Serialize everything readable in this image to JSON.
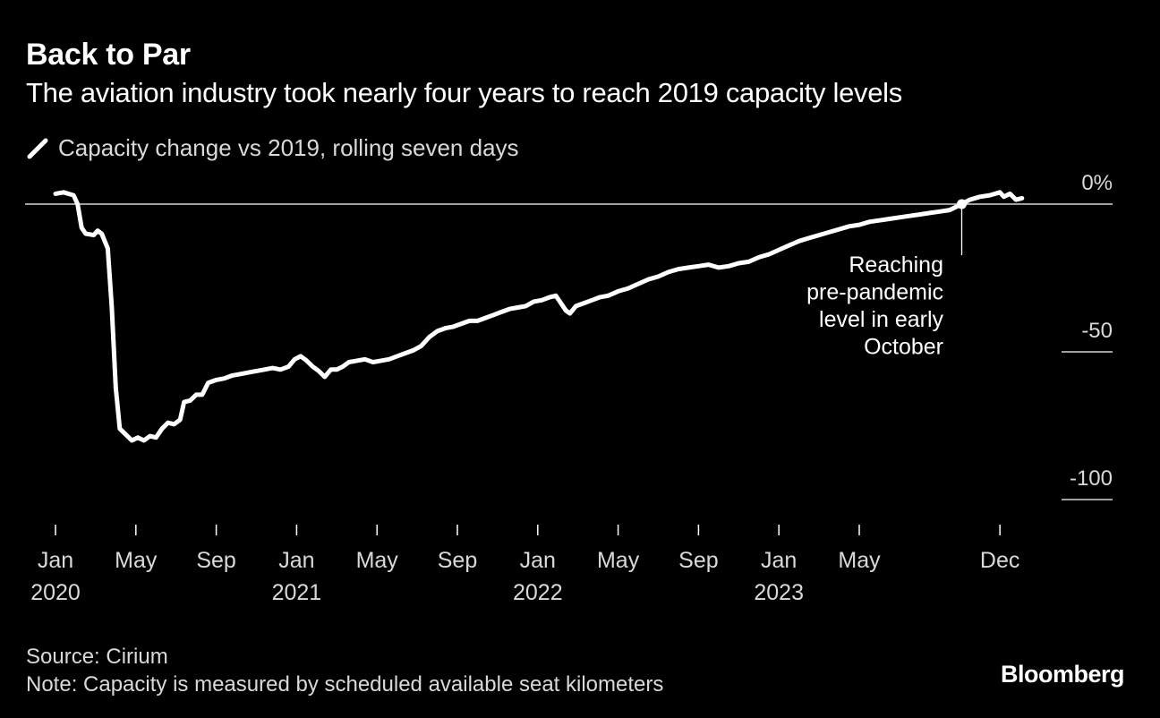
{
  "title": "Back to Par",
  "subtitle": "The aviation industry took nearly four years to reach 2019 capacity levels",
  "legend_label": "Capacity change vs 2019, rolling seven days",
  "footer": {
    "source": "Source: Cirium",
    "note": "Note: Capacity is measured by scheduled available seat kilometers"
  },
  "brand": "Bloomberg",
  "colors": {
    "background": "#000000",
    "line": "#ffffff",
    "text": "#ffffff",
    "muted": "#d9d9d9"
  },
  "chart_data": {
    "type": "line",
    "ylabel": "Capacity change vs 2019, rolling seven days",
    "ylim": [
      -100,
      0
    ],
    "y_ticks": [
      {
        "value": 0,
        "label": "0%"
      },
      {
        "value": -50,
        "label": "-50"
      },
      {
        "value": -100,
        "label": "-100"
      }
    ],
    "x_ticks": [
      {
        "month": 0,
        "line1": "Jan",
        "line2": "2020"
      },
      {
        "month": 4,
        "line1": "May",
        "line2": ""
      },
      {
        "month": 8,
        "line1": "Sep",
        "line2": ""
      },
      {
        "month": 12,
        "line1": "Jan",
        "line2": "2021"
      },
      {
        "month": 16,
        "line1": "May",
        "line2": ""
      },
      {
        "month": 20,
        "line1": "Sep",
        "line2": ""
      },
      {
        "month": 24,
        "line1": "Jan",
        "line2": "2022"
      },
      {
        "month": 28,
        "line1": "May",
        "line2": ""
      },
      {
        "month": 32,
        "line1": "Sep",
        "line2": ""
      },
      {
        "month": 36,
        "line1": "Jan",
        "line2": "2023"
      },
      {
        "month": 40,
        "line1": "May",
        "line2": ""
      },
      {
        "month": 47,
        "line1": "Dec",
        "line2": ""
      }
    ],
    "annotation": {
      "month": 45.1,
      "value": 0,
      "lines": [
        "Reaching",
        "pre-pandemic",
        "level in early",
        "October"
      ]
    },
    "series": [
      {
        "name": "Capacity change vs 2019",
        "points": [
          [
            0.0,
            3.5
          ],
          [
            0.4,
            4.0
          ],
          [
            0.9,
            3.0
          ],
          [
            1.1,
            0.0
          ],
          [
            1.3,
            -8.0
          ],
          [
            1.5,
            -10.0
          ],
          [
            1.9,
            -10.5
          ],
          [
            2.1,
            -9.0
          ],
          [
            2.3,
            -10.0
          ],
          [
            2.6,
            -15.0
          ],
          [
            2.8,
            -35.0
          ],
          [
            3.0,
            -62.0
          ],
          [
            3.2,
            -76.0
          ],
          [
            3.5,
            -78.0
          ],
          [
            3.8,
            -80.0
          ],
          [
            4.1,
            -79.0
          ],
          [
            4.4,
            -80.0
          ],
          [
            4.7,
            -78.5
          ],
          [
            5.0,
            -79.0
          ],
          [
            5.3,
            -76.0
          ],
          [
            5.6,
            -74.0
          ],
          [
            5.9,
            -74.5
          ],
          [
            6.2,
            -73.0
          ],
          [
            6.4,
            -67.0
          ],
          [
            6.7,
            -66.5
          ],
          [
            7.0,
            -64.5
          ],
          [
            7.3,
            -64.5
          ],
          [
            7.6,
            -60.5
          ],
          [
            8.0,
            -59.5
          ],
          [
            8.4,
            -59.0
          ],
          [
            8.8,
            -58.0
          ],
          [
            9.2,
            -57.5
          ],
          [
            9.6,
            -57.0
          ],
          [
            10.0,
            -56.5
          ],
          [
            10.4,
            -56.0
          ],
          [
            10.8,
            -55.5
          ],
          [
            11.2,
            -56.0
          ],
          [
            11.6,
            -55.0
          ],
          [
            11.9,
            -52.5
          ],
          [
            12.2,
            -51.5
          ],
          [
            12.5,
            -53.0
          ],
          [
            12.8,
            -55.0
          ],
          [
            13.1,
            -56.5
          ],
          [
            13.4,
            -58.5
          ],
          [
            13.7,
            -56.0
          ],
          [
            14.0,
            -56.0
          ],
          [
            14.3,
            -55.0
          ],
          [
            14.6,
            -53.5
          ],
          [
            15.0,
            -53.0
          ],
          [
            15.4,
            -52.5
          ],
          [
            15.8,
            -53.5
          ],
          [
            16.2,
            -53.0
          ],
          [
            16.6,
            -52.5
          ],
          [
            17.0,
            -51.5
          ],
          [
            17.4,
            -50.5
          ],
          [
            17.8,
            -49.5
          ],
          [
            18.2,
            -48.0
          ],
          [
            18.6,
            -45.0
          ],
          [
            19.0,
            -43.0
          ],
          [
            19.4,
            -42.0
          ],
          [
            19.8,
            -41.5
          ],
          [
            20.2,
            -40.5
          ],
          [
            20.6,
            -39.5
          ],
          [
            21.0,
            -39.5
          ],
          [
            21.4,
            -38.5
          ],
          [
            21.8,
            -37.5
          ],
          [
            22.2,
            -36.5
          ],
          [
            22.6,
            -35.5
          ],
          [
            23.0,
            -35.0
          ],
          [
            23.4,
            -34.5
          ],
          [
            23.8,
            -33.0
          ],
          [
            24.2,
            -32.5
          ],
          [
            24.6,
            -31.5
          ],
          [
            24.9,
            -31.0
          ],
          [
            25.1,
            -33.0
          ],
          [
            25.4,
            -36.0
          ],
          [
            25.6,
            -37.0
          ],
          [
            25.9,
            -34.5
          ],
          [
            26.3,
            -33.5
          ],
          [
            26.7,
            -32.5
          ],
          [
            27.1,
            -31.5
          ],
          [
            27.5,
            -31.0
          ],
          [
            28.0,
            -29.5
          ],
          [
            28.5,
            -28.5
          ],
          [
            29.0,
            -27.0
          ],
          [
            29.5,
            -25.5
          ],
          [
            30.0,
            -24.5
          ],
          [
            30.5,
            -23.0
          ],
          [
            31.0,
            -22.0
          ],
          [
            31.5,
            -21.5
          ],
          [
            32.0,
            -21.0
          ],
          [
            32.5,
            -20.5
          ],
          [
            33.0,
            -21.5
          ],
          [
            33.5,
            -21.0
          ],
          [
            34.0,
            -20.0
          ],
          [
            34.5,
            -19.5
          ],
          [
            35.0,
            -18.0
          ],
          [
            35.5,
            -17.0
          ],
          [
            36.0,
            -15.5
          ],
          [
            36.5,
            -14.0
          ],
          [
            37.0,
            -12.5
          ],
          [
            37.5,
            -11.5
          ],
          [
            38.0,
            -10.5
          ],
          [
            38.5,
            -9.5
          ],
          [
            39.0,
            -8.5
          ],
          [
            39.5,
            -7.5
          ],
          [
            40.0,
            -7.0
          ],
          [
            40.5,
            -6.0
          ],
          [
            41.0,
            -5.5
          ],
          [
            41.5,
            -5.0
          ],
          [
            42.0,
            -4.5
          ],
          [
            42.5,
            -4.0
          ],
          [
            43.0,
            -3.5
          ],
          [
            43.5,
            -3.0
          ],
          [
            44.0,
            -2.5
          ],
          [
            44.5,
            -2.0
          ],
          [
            45.1,
            0.0
          ],
          [
            45.5,
            1.5
          ],
          [
            46.0,
            2.5
          ],
          [
            46.5,
            3.0
          ],
          [
            47.0,
            4.0
          ],
          [
            47.2,
            2.5
          ],
          [
            47.5,
            3.5
          ],
          [
            47.8,
            1.5
          ],
          [
            48.1,
            2.0
          ]
        ]
      }
    ]
  }
}
